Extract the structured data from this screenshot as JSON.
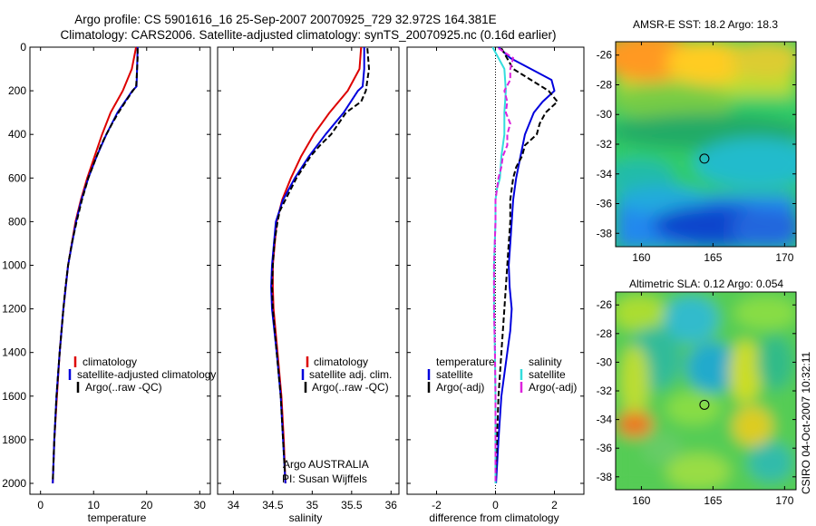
{
  "title": {
    "line1": "Argo profile: CS 5901616_16 25-Sep-2007 20070925_729 32.972S 164.381E",
    "line2": "Climatology: CARS2006. Satellite-adjusted climatology: synTS_20070925.nc (0.16d earlier)"
  },
  "colors": {
    "red": "#dd0000",
    "blue": "#0000dd",
    "black": "#000000",
    "cyan": "#33dddd",
    "magenta": "#dd22dd"
  },
  "chart_data": [
    {
      "type": "line",
      "xlabel": "temperature",
      "ylabel": "",
      "xlim": [
        -2,
        32
      ],
      "ylim": [
        2050,
        0
      ],
      "xticks": [
        0,
        10,
        20,
        30
      ],
      "yticks": [
        0,
        200,
        400,
        600,
        800,
        1000,
        1200,
        1400,
        1600,
        1800,
        2000
      ],
      "legend": {
        "placement": "lower-right",
        "entries": [
          "climatology",
          "satellite-adjusted climatology",
          "Argo(..raw -QC)"
        ]
      },
      "series": [
        {
          "name": "climatology",
          "color": "red",
          "dash": "",
          "depth": [
            0,
            100,
            200,
            300,
            400,
            500,
            600,
            700,
            800,
            1000,
            1200,
            1400,
            1600,
            1800,
            2000
          ],
          "values": [
            18.0,
            17.2,
            15.5,
            13.2,
            11.6,
            10.2,
            8.8,
            7.6,
            6.6,
            5.2,
            4.3,
            3.6,
            3.1,
            2.6,
            2.3
          ]
        },
        {
          "name": "satellite-adjusted climatology",
          "color": "blue",
          "dash": "",
          "depth": [
            0,
            100,
            180,
            200,
            300,
            400,
            500,
            600,
            700,
            800,
            1000,
            1200,
            1400,
            1600,
            1800,
            2000
          ],
          "values": [
            18.3,
            18.2,
            18.1,
            17.3,
            14.5,
            12.4,
            10.6,
            9.0,
            7.7,
            6.7,
            5.2,
            4.3,
            3.6,
            3.0,
            2.6,
            2.3
          ]
        },
        {
          "name": "Argo(..raw -QC)",
          "color": "black",
          "dash": "6 3",
          "depth": [
            5,
            50,
            100,
            150,
            180,
            200,
            250,
            300,
            350,
            400,
            450,
            500,
            600,
            700,
            800,
            900,
            1000,
            1100,
            1200,
            1400,
            1600,
            1800,
            1990
          ],
          "values": [
            18.3,
            18.3,
            18.2,
            18.1,
            18.0,
            17.4,
            16.0,
            14.7,
            13.5,
            12.4,
            11.4,
            10.6,
            9.0,
            7.8,
            6.8,
            5.9,
            5.2,
            4.7,
            4.3,
            3.6,
            3.0,
            2.6,
            2.3
          ]
        }
      ]
    },
    {
      "type": "line",
      "xlabel": "salinity",
      "ylabel": "",
      "xlim": [
        33.8,
        36.1
      ],
      "ylim": [
        2050,
        0
      ],
      "xticks": [
        34,
        34.5,
        35,
        35.5,
        36
      ],
      "yticks": [
        0,
        200,
        400,
        600,
        800,
        1000,
        1200,
        1400,
        1600,
        1800,
        2000
      ],
      "legend": {
        "placement": "lower-right",
        "entries": [
          "climatology",
          "satellite adj. clim.",
          "Argo(..raw -QC)"
        ]
      },
      "annotation": {
        "line1": "Argo AUSTRALIA",
        "line2": "PI: Susan Wijffels"
      },
      "series": [
        {
          "name": "climatology",
          "color": "red",
          "dash": "",
          "depth": [
            0,
            100,
            200,
            300,
            400,
            500,
            600,
            700,
            800,
            1000,
            1100,
            1200,
            1400,
            1600,
            1800,
            2000
          ],
          "values": [
            35.62,
            35.6,
            35.45,
            35.22,
            35.02,
            34.86,
            34.73,
            34.62,
            34.55,
            34.5,
            34.5,
            34.51,
            34.56,
            34.61,
            34.64,
            34.66
          ]
        },
        {
          "name": "satellite adj. clim.",
          "color": "blue",
          "dash": "",
          "depth": [
            0,
            100,
            180,
            200,
            300,
            400,
            500,
            600,
            700,
            800,
            1000,
            1100,
            1200,
            1400,
            1600,
            1800,
            2000
          ],
          "values": [
            35.66,
            35.66,
            35.64,
            35.58,
            35.4,
            35.17,
            34.96,
            34.78,
            34.63,
            34.54,
            34.49,
            34.48,
            34.49,
            34.55,
            34.6,
            34.63,
            34.66
          ]
        },
        {
          "name": "Argo(..raw -QC)",
          "color": "black",
          "dash": "6 3",
          "depth": [
            5,
            100,
            200,
            250,
            300,
            400,
            450,
            500,
            600,
            700,
            750,
            800,
            900,
            1000,
            1100,
            1200,
            1400,
            1600,
            1800,
            1990
          ],
          "values": [
            35.7,
            35.72,
            35.68,
            35.62,
            35.43,
            35.24,
            35.1,
            34.98,
            34.8,
            34.66,
            34.59,
            34.56,
            34.52,
            34.5,
            34.49,
            34.5,
            34.55,
            34.6,
            34.63,
            34.66
          ]
        }
      ]
    },
    {
      "type": "line",
      "xlabel": "difference from climatology",
      "ylabel": "",
      "xlim": [
        -3,
        3
      ],
      "ylim": [
        2050,
        0
      ],
      "xticks": [
        -2,
        0,
        2
      ],
      "yticks": [
        0,
        200,
        400,
        600,
        800,
        1000,
        1200,
        1400,
        1600,
        1800,
        2000
      ],
      "legend": {
        "placement": "lower-center",
        "temperature_header": "temperature",
        "salinity_header": "salinity",
        "entries": [
          "satellite",
          "Argo(-adj)",
          "satellite",
          "Argo(-adj)"
        ]
      },
      "series": [
        {
          "name": "satellite",
          "group": "temperature",
          "color": "blue",
          "dash": "",
          "depth": [
            0,
            50,
            100,
            150,
            200,
            250,
            300,
            400,
            500,
            600,
            700,
            800,
            900,
            1000,
            1100,
            1200,
            1300,
            1400,
            1600,
            1800,
            2000
          ],
          "values": [
            0.1,
            0.5,
            1.2,
            1.9,
            2.0,
            1.6,
            1.3,
            1.0,
            0.85,
            0.7,
            0.6,
            0.55,
            0.5,
            0.45,
            0.48,
            0.55,
            0.5,
            0.4,
            0.2,
            0.1,
            0.02
          ]
        },
        {
          "name": "Argo(-adj)",
          "group": "temperature",
          "color": "black",
          "dash": "6 3",
          "depth": [
            5,
            100,
            200,
            250,
            300,
            350,
            400,
            450,
            500,
            550,
            600,
            650,
            700,
            800,
            900,
            1000,
            1200,
            1400,
            1600,
            1800,
            1990
          ],
          "values": [
            0.2,
            0.6,
            1.8,
            2.1,
            1.7,
            1.5,
            1.4,
            1.0,
            0.9,
            0.7,
            0.6,
            0.55,
            0.5,
            0.5,
            0.45,
            0.4,
            0.3,
            0.2,
            0.1,
            0.05,
            0.0
          ]
        },
        {
          "name": "satellite",
          "group": "salinity",
          "color": "cyan",
          "dash": "",
          "depth": [
            0,
            50,
            100,
            200,
            300,
            400,
            500,
            600,
            650,
            700,
            800,
            1000,
            1200,
            1400,
            1600,
            1800,
            2000
          ],
          "values": [
            -0.1,
            0.1,
            0.3,
            0.35,
            0.3,
            0.3,
            0.2,
            0.15,
            0.05,
            0.0,
            0.0,
            -0.05,
            -0.05,
            -0.02,
            0.0,
            0.0,
            0.0
          ]
        },
        {
          "name": "Argo(-adj)",
          "group": "salinity",
          "color": "magenta",
          "dash": "6 3",
          "depth": [
            5,
            50,
            100,
            150,
            200,
            250,
            300,
            350,
            400,
            450,
            500,
            550,
            600,
            700,
            800,
            1000,
            1200,
            1400,
            1600,
            1800,
            1990
          ],
          "values": [
            0.1,
            0.6,
            0.5,
            0.5,
            0.3,
            0.4,
            0.35,
            0.5,
            0.4,
            0.4,
            0.25,
            0.2,
            0.1,
            0.0,
            0.0,
            -0.05,
            -0.05,
            -0.02,
            0.0,
            0.0,
            0.0
          ]
        }
      ]
    },
    {
      "type": "heatmap",
      "title": "AMSR-E SST: 18.2 Argo: 18.3",
      "xlim": [
        158.2,
        170.8
      ],
      "ylim": [
        -38.9,
        -25.1
      ],
      "xticks": [
        160,
        165,
        170
      ],
      "yticks": [
        -26,
        -28,
        -30,
        -32,
        -34,
        -36,
        -38
      ],
      "marker": [
        164.4,
        -32.97
      ]
    },
    {
      "type": "heatmap",
      "title": "Altimetric SLA: 0.12 Argo: 0.054",
      "xlim": [
        158.2,
        170.8
      ],
      "ylim": [
        -38.9,
        -25.1
      ],
      "xticks": [
        160,
        165,
        170
      ],
      "yticks": [
        -26,
        -28,
        -30,
        -32,
        -34,
        -36,
        -38
      ],
      "marker": [
        164.4,
        -32.97
      ]
    }
  ],
  "footer": "CSIRO 04-Oct-2007 10:32:11"
}
